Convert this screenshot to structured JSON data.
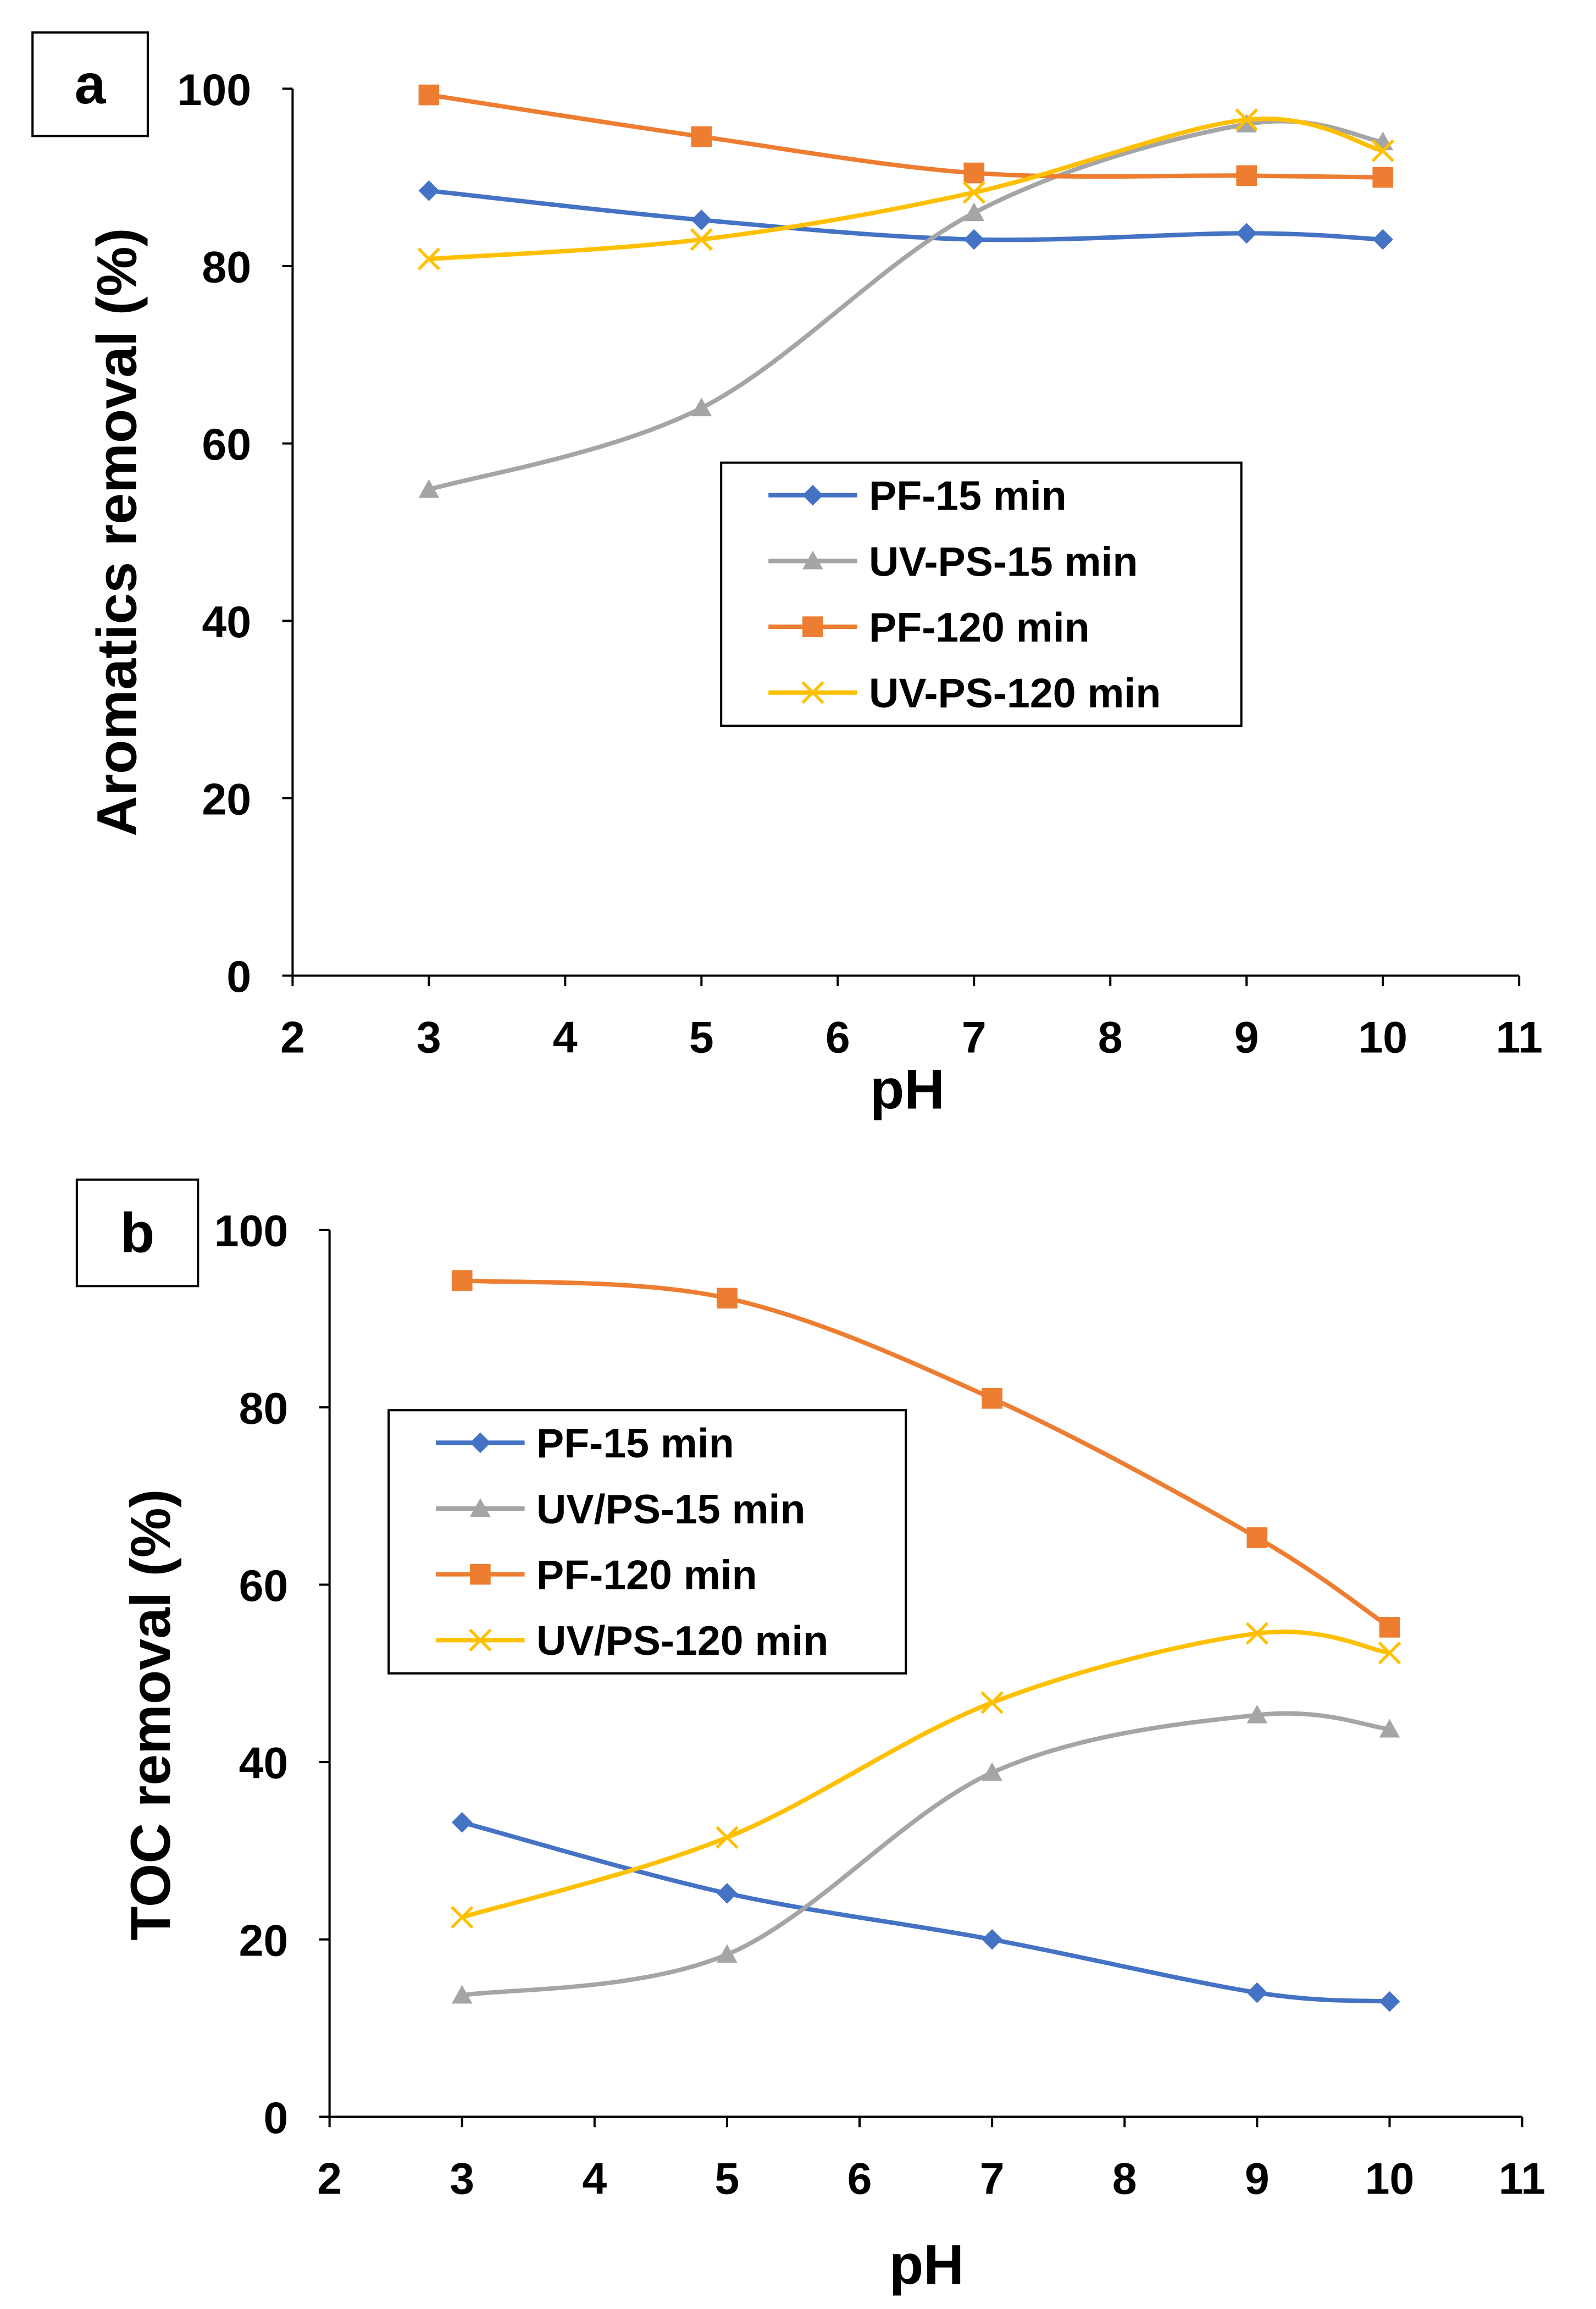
{
  "chart_data": [
    {
      "type": "line",
      "panel_label": "a",
      "xlabel": "pH",
      "ylabel": "Aromatics removal (%)",
      "xlim": [
        2,
        11
      ],
      "ylim": [
        0,
        100
      ],
      "xticks": [
        "2",
        "3",
        "4",
        "5",
        "6",
        "7",
        "8",
        "9",
        "10",
        "11"
      ],
      "yticks": [
        "0",
        "20",
        "40",
        "60",
        "80",
        "100"
      ],
      "legend": "center-right",
      "x": [
        3,
        5,
        7,
        9,
        10
      ],
      "series": [
        {
          "name": "PF-15 min",
          "color": "#4472C4",
          "marker": "diamond",
          "values": [
            88.5,
            85.2,
            83.0,
            83.7,
            83.0
          ]
        },
        {
          "name": "UV-PS-15 min",
          "color": "#A5A5A5",
          "marker": "triangle",
          "values": [
            54.8,
            64.0,
            86.0,
            96.0,
            94.0
          ]
        },
        {
          "name": "PF-120 min",
          "color": "#ED7D31",
          "marker": "square",
          "values": [
            99.3,
            94.6,
            90.5,
            90.2,
            90.0
          ]
        },
        {
          "name": "UV-PS-120 min",
          "color": "#FFC000",
          "marker": "x",
          "values": [
            80.8,
            83.0,
            88.3,
            96.5,
            93.0
          ]
        }
      ]
    },
    {
      "type": "line",
      "panel_label": "b",
      "xlabel": "pH",
      "ylabel": "TOC removal (%)",
      "xlim": [
        2,
        11
      ],
      "ylim": [
        0,
        100
      ],
      "xticks": [
        "2",
        "3",
        "4",
        "5",
        "6",
        "7",
        "8",
        "9",
        "10",
        "11"
      ],
      "yticks": [
        "0",
        "20",
        "40",
        "60",
        "80",
        "100"
      ],
      "legend": "upper-left",
      "x": [
        3,
        5,
        7,
        9,
        10
      ],
      "series": [
        {
          "name": "PF-15 min",
          "color": "#4472C4",
          "marker": "diamond",
          "values": [
            33.2,
            25.2,
            20.0,
            14.0,
            13.0
          ]
        },
        {
          "name": "UV/PS-15 min",
          "color": "#A5A5A5",
          "marker": "triangle",
          "values": [
            13.7,
            18.3,
            38.8,
            45.3,
            43.7
          ]
        },
        {
          "name": "PF-120 min",
          "color": "#ED7D31",
          "marker": "square",
          "values": [
            94.3,
            92.3,
            81.0,
            65.3,
            55.2
          ]
        },
        {
          "name": "UV/PS-120 min",
          "color": "#FFC000",
          "marker": "x",
          "values": [
            22.5,
            31.5,
            46.7,
            54.5,
            52.3
          ]
        }
      ]
    }
  ]
}
